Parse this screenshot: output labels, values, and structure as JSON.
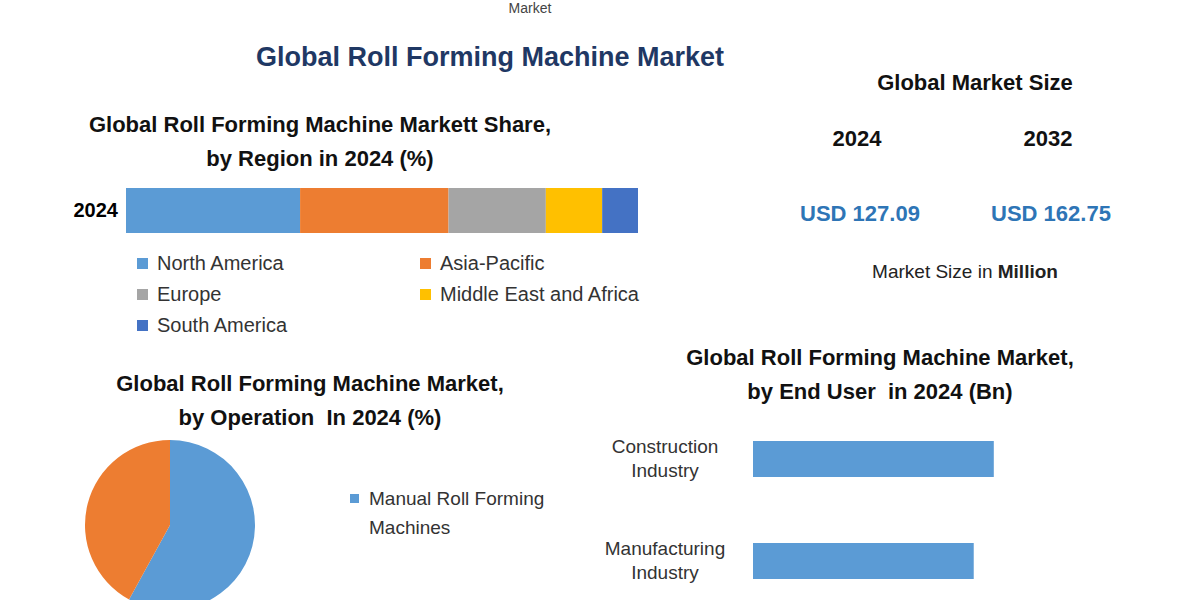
{
  "header": {
    "fragment": "Market",
    "title": "Global Roll Forming Machine Market"
  },
  "market_size": {
    "title": "Global Market Size",
    "entries": [
      {
        "year": "2024",
        "value": "USD 127.09"
      },
      {
        "year": "2032",
        "value": "USD 162.75"
      }
    ],
    "note": "Market Size in",
    "unit": "Million"
  },
  "chart_data": [
    {
      "type": "bar",
      "title": "Global Roll Forming Machine Markett Share,\nby Region in 2024 (%)",
      "orientation": "horizontal",
      "stacked": true,
      "categories": [
        "2024"
      ],
      "series": [
        {
          "name": "North America",
          "color": "#5b9bd5",
          "values": [
            34
          ]
        },
        {
          "name": "Asia-Pacific",
          "color": "#ed7d31",
          "values": [
            29
          ]
        },
        {
          "name": "Europe",
          "color": "#a5a5a5",
          "values": [
            19
          ]
        },
        {
          "name": "Middle East and Africa",
          "color": "#ffc000",
          "values": [
            11
          ]
        },
        {
          "name": "South America",
          "color": "#4472c4",
          "values": [
            7
          ]
        }
      ],
      "xlim": [
        0,
        100
      ],
      "tick_labels": "y",
      "legend": "bottom"
    },
    {
      "type": "pie",
      "title": "Global Roll Forming Machine Market,\nby Operation  In 2024 (%)",
      "categories": [
        "Manual Roll Forming Machines",
        null
      ],
      "values": [
        58,
        42
      ],
      "colors": [
        "#5b9bd5",
        "#ed7d31"
      ],
      "legend": "right"
    },
    {
      "type": "bar",
      "title": "Global Roll Forming Machine Market,\nby End User  in 2024 (Bn)",
      "orientation": "horizontal",
      "categories": [
        "Construction Industry",
        "Manufacturing Industry"
      ],
      "values": [
        24,
        22
      ],
      "color": "#5b9bd5",
      "xlim": [
        0,
        30
      ],
      "tick_labels": "y"
    }
  ]
}
